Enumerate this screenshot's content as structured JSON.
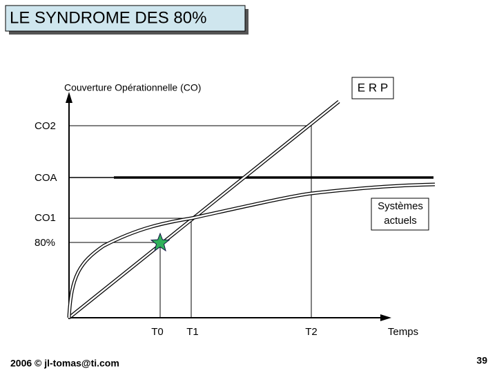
{
  "header": {
    "title": "LE SYNDROME DES 80%"
  },
  "diagram": {
    "y_axis_label": "Couverture Opérationnelle (CO)",
    "erp_label": "E R P",
    "legacy_label": [
      "Systèmes",
      "actuels"
    ],
    "levels": [
      "CO2",
      "COA",
      "CO1",
      "80%"
    ],
    "times": [
      "T0",
      "T1",
      "T2"
    ],
    "x_axis_label": "Temps"
  },
  "footer": {
    "credit": "2006 © jl-tomas@ti.com",
    "page": "39"
  }
}
